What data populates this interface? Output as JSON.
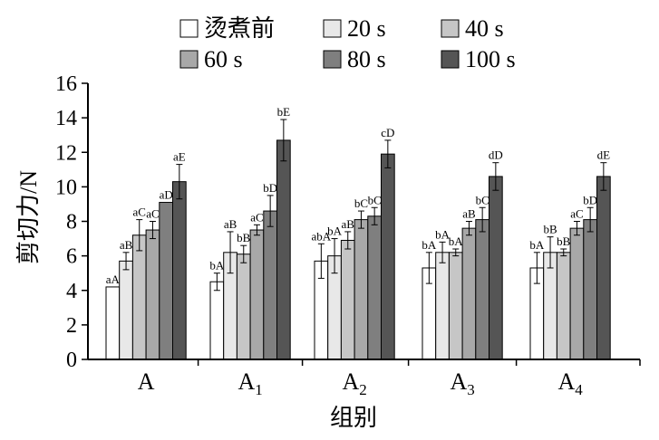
{
  "chart_data": {
    "type": "bar",
    "xlabel": "组别",
    "ylabel": "剪切力/N",
    "ylim": [
      0,
      16
    ],
    "yticks": [
      0,
      2,
      4,
      6,
      8,
      10,
      12,
      14,
      16
    ],
    "grid": false,
    "legend_position": "top",
    "categories": [
      {
        "main": "A",
        "sub": ""
      },
      {
        "main": "A",
        "sub": "1"
      },
      {
        "main": "A",
        "sub": "2"
      },
      {
        "main": "A",
        "sub": "3"
      },
      {
        "main": "A",
        "sub": "4"
      }
    ],
    "series": [
      {
        "name": "烫煮前",
        "color": "#ffffff",
        "values": [
          4.2,
          4.5,
          5.7,
          5.3,
          5.3
        ],
        "errors": [
          0.0,
          0.5,
          1.0,
          0.9,
          0.9
        ],
        "labels": [
          "aA",
          "bA",
          "abA",
          "bA",
          "bA"
        ]
      },
      {
        "name": "20 s",
        "color": "#e8e8e8",
        "values": [
          5.7,
          6.2,
          6.0,
          6.2,
          6.2
        ],
        "errors": [
          0.5,
          1.2,
          1.0,
          0.6,
          0.9
        ],
        "labels": [
          "aB",
          "aB",
          "bA",
          "bA",
          "bB"
        ]
      },
      {
        "name": "40 s",
        "color": "#c6c6c6",
        "values": [
          7.2,
          6.1,
          6.9,
          6.2,
          6.2
        ],
        "errors": [
          0.9,
          0.5,
          0.5,
          0.2,
          0.2
        ],
        "labels": [
          "aC",
          "bB",
          "aB",
          "bA",
          "bB"
        ]
      },
      {
        "name": "60 s",
        "color": "#a8a8a8",
        "values": [
          7.5,
          7.5,
          8.1,
          7.6,
          7.6
        ],
        "errors": [
          0.5,
          0.3,
          0.5,
          0.4,
          0.4
        ],
        "labels": [
          "aC",
          "aC",
          "bC",
          "aB",
          "aC"
        ]
      },
      {
        "name": "80 s",
        "color": "#7f7f7f",
        "values": [
          9.1,
          8.6,
          8.3,
          8.1,
          8.1
        ],
        "errors": [
          0.0,
          0.9,
          0.5,
          0.7,
          0.7
        ],
        "labels": [
          "aD",
          "bD",
          "bC",
          "bC",
          "bD"
        ]
      },
      {
        "name": "100 s",
        "color": "#555555",
        "values": [
          10.3,
          12.7,
          11.9,
          10.6,
          10.6
        ],
        "errors": [
          1.0,
          1.2,
          0.8,
          0.8,
          0.8
        ],
        "labels": [
          "aE",
          "bE",
          "cD",
          "dD",
          "dE"
        ]
      }
    ]
  }
}
